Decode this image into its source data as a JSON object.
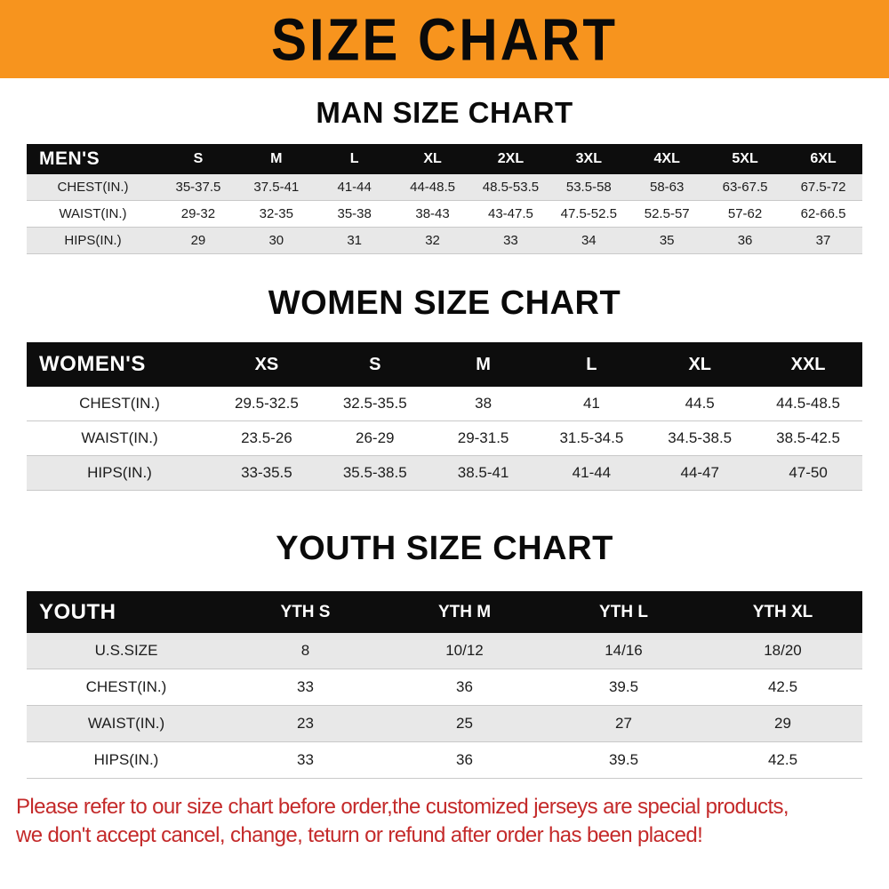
{
  "banner": {
    "title": "SIZE CHART"
  },
  "colors": {
    "banner_bg": "#F7941E",
    "header_bg": "#0D0D0D",
    "row_shade": "#E8E8E8",
    "footer_red": "#C42A2A"
  },
  "chart_data": [
    {
      "type": "table",
      "title": "MAN SIZE CHART",
      "corner_label": "MEN'S",
      "columns": [
        "S",
        "M",
        "L",
        "XL",
        "2XL",
        "3XL",
        "4XL",
        "5XL",
        "6XL"
      ],
      "rows": [
        {
          "label": "CHEST(IN.)",
          "shaded": true,
          "values": [
            "35-37.5",
            "37.5-41",
            "41-44",
            "44-48.5",
            "48.5-53.5",
            "53.5-58",
            "58-63",
            "63-67.5",
            "67.5-72"
          ]
        },
        {
          "label": "WAIST(IN.)",
          "shaded": false,
          "values": [
            "29-32",
            "32-35",
            "35-38",
            "38-43",
            "43-47.5",
            "47.5-52.5",
            "52.5-57",
            "57-62",
            "62-66.5"
          ]
        },
        {
          "label": "HIPS(IN.)",
          "shaded": true,
          "values": [
            "29",
            "30",
            "31",
            "32",
            "33",
            "34",
            "35",
            "36",
            "37"
          ]
        }
      ]
    },
    {
      "type": "table",
      "title": "WOMEN SIZE CHART",
      "corner_label": "WOMEN'S",
      "columns": [
        "XS",
        "S",
        "M",
        "L",
        "XL",
        "XXL"
      ],
      "rows": [
        {
          "label": "CHEST(IN.)",
          "shaded": false,
          "values": [
            "29.5-32.5",
            "32.5-35.5",
            "38",
            "41",
            "44.5",
            "44.5-48.5"
          ]
        },
        {
          "label": "WAIST(IN.)",
          "shaded": false,
          "values": [
            "23.5-26",
            "26-29",
            "29-31.5",
            "31.5-34.5",
            "34.5-38.5",
            "38.5-42.5"
          ]
        },
        {
          "label": "HIPS(IN.)",
          "shaded": true,
          "values": [
            "33-35.5",
            "35.5-38.5",
            "38.5-41",
            "41-44",
            "44-47",
            "47-50"
          ]
        }
      ]
    },
    {
      "type": "table",
      "title": "YOUTH SIZE CHART",
      "corner_label": "YOUTH",
      "columns": [
        "YTH S",
        "YTH M",
        "YTH L",
        "YTH XL"
      ],
      "rows": [
        {
          "label": "U.S.SIZE",
          "shaded": true,
          "values": [
            "8",
            "10/12",
            "14/16",
            "18/20"
          ]
        },
        {
          "label": "CHEST(IN.)",
          "shaded": false,
          "values": [
            "33",
            "36",
            "39.5",
            "42.5"
          ]
        },
        {
          "label": "WAIST(IN.)",
          "shaded": true,
          "values": [
            "23",
            "25",
            "27",
            "29"
          ]
        },
        {
          "label": "HIPS(IN.)",
          "shaded": false,
          "values": [
            "33",
            "36",
            "39.5",
            "42.5"
          ]
        }
      ]
    }
  ],
  "footer": {
    "line1": "Please refer to our size chart before order,the customized jerseys are special products,",
    "line2": "we don't accept cancel, change, teturn or refund after order has been placed!"
  }
}
